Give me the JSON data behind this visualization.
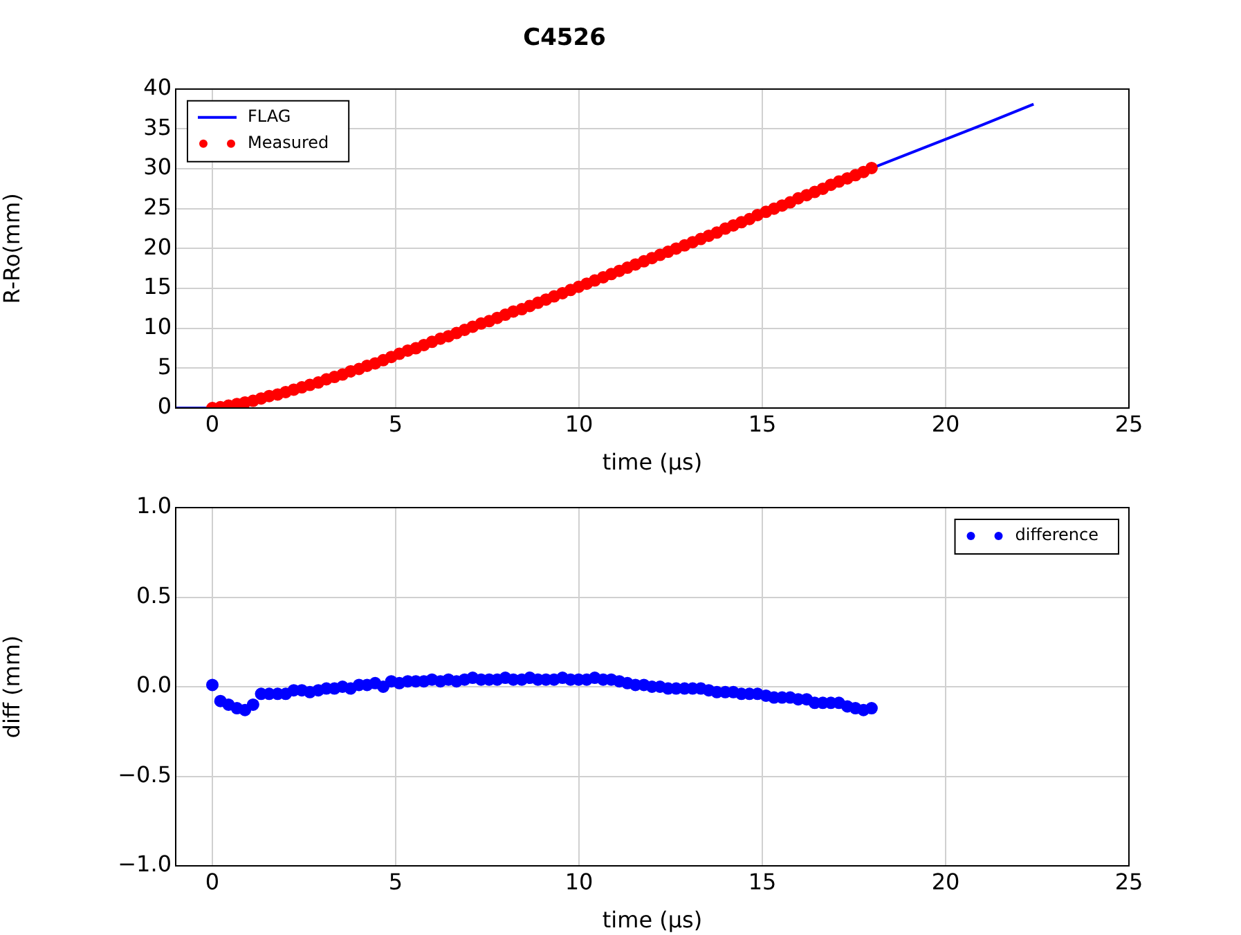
{
  "chart_data": [
    {
      "type": "line",
      "title": "C4526",
      "xlabel": "time (μs)",
      "ylabel": "R-Ro(mm)",
      "xlim": [
        -1,
        25
      ],
      "xticks": [
        0,
        5,
        10,
        15,
        20,
        25
      ],
      "ylim": [
        0,
        40
      ],
      "yticks": [
        0,
        5,
        10,
        15,
        20,
        25,
        30,
        35,
        40
      ],
      "grid": true,
      "legend": "top left",
      "series": [
        {
          "name": "FLAG",
          "type": "line",
          "color": "#0000ff",
          "marker": "none",
          "line_style": "solid",
          "x": [
            -1,
            0,
            0.5,
            1,
            1.5,
            2,
            3,
            4,
            5,
            6,
            7,
            8,
            9,
            10,
            11,
            12,
            13,
            14,
            15,
            16,
            17,
            18,
            19,
            20,
            21,
            22.4
          ],
          "values": [
            0,
            0,
            null,
            null,
            null,
            null,
            null,
            null,
            null,
            null,
            null,
            null,
            null,
            null,
            null,
            null,
            null,
            null,
            null,
            null,
            null,
            30.1,
            31.9,
            33.7,
            35.5,
            38.1
          ]
        },
        {
          "name": "Measured",
          "type": "scatter",
          "color": "#ff0000",
          "marker": "circle",
          "x": [
            0,
            0.22,
            0.44,
            0.67,
            0.89,
            1.11,
            1.33,
            1.55,
            1.78,
            2.0,
            2.22,
            2.44,
            2.66,
            2.89,
            3.11,
            3.33,
            3.55,
            3.77,
            4.0,
            4.22,
            4.44,
            4.66,
            4.88,
            5.1,
            5.33,
            5.55,
            5.77,
            5.99,
            6.22,
            6.44,
            6.66,
            6.88,
            7.1,
            7.33,
            7.55,
            7.77,
            7.99,
            8.21,
            8.44,
            8.66,
            8.88,
            9.1,
            9.32,
            9.55,
            9.77,
            9.99,
            10.21,
            10.43,
            10.66,
            10.88,
            11.1,
            11.32,
            11.54,
            11.77,
            11.99,
            12.21,
            12.43,
            12.65,
            12.88,
            13.1,
            13.32,
            13.54,
            13.76,
            13.99,
            14.21,
            14.43,
            14.65,
            14.87,
            15.1,
            15.32,
            15.54,
            15.76,
            15.98,
            16.21,
            16.43,
            16.65,
            16.87,
            17.09,
            17.32,
            17.54,
            17.76,
            17.98
          ],
          "values": [
            0,
            0.1,
            0.3,
            0.5,
            0.7,
            0.9,
            1.2,
            1.5,
            1.7,
            2.0,
            2.3,
            2.6,
            2.9,
            3.2,
            3.6,
            3.9,
            4.2,
            4.6,
            4.9,
            5.3,
            5.6,
            6.0,
            6.4,
            6.8,
            7.2,
            7.5,
            7.9,
            8.3,
            8.7,
            9.0,
            9.4,
            9.8,
            10.2,
            10.6,
            10.9,
            11.3,
            11.7,
            12.1,
            12.4,
            12.8,
            13.2,
            13.6,
            14.0,
            14.4,
            14.8,
            15.2,
            15.6,
            16.0,
            16.4,
            16.8,
            17.2,
            17.6,
            18.0,
            18.4,
            18.8,
            19.2,
            19.6,
            20.0,
            20.4,
            20.8,
            21.2,
            21.6,
            22.0,
            22.5,
            22.9,
            23.3,
            23.7,
            24.2,
            24.6,
            25.0,
            25.4,
            25.8,
            26.3,
            26.7,
            27.1,
            27.5,
            28.0,
            28.4,
            28.8,
            29.2,
            29.6,
            30.1
          ]
        }
      ]
    },
    {
      "type": "scatter",
      "xlabel": "time (μs)",
      "ylabel": "diff (mm)",
      "xlim": [
        -1,
        25
      ],
      "xticks": [
        0,
        5,
        10,
        15,
        20,
        25
      ],
      "ylim": [
        -1,
        1
      ],
      "yticks": [
        {
          "value": -1,
          "label": "−1.0"
        },
        {
          "value": -0.5,
          "label": "−0.5"
        },
        {
          "value": 0,
          "label": "0.0"
        },
        {
          "value": 0.5,
          "label": "0.5"
        },
        {
          "value": 1,
          "label": "1.0"
        }
      ],
      "grid": true,
      "legend": "top right",
      "marker": "circle",
      "series": [
        {
          "name": "difference",
          "color": "#0000ff",
          "x": [
            0,
            0.22,
            0.44,
            0.67,
            0.89,
            1.11,
            1.33,
            1.55,
            1.78,
            2.0,
            2.22,
            2.44,
            2.66,
            2.89,
            3.11,
            3.33,
            3.55,
            3.77,
            4.0,
            4.22,
            4.44,
            4.66,
            4.88,
            5.1,
            5.33,
            5.55,
            5.77,
            5.99,
            6.22,
            6.44,
            6.66,
            6.88,
            7.1,
            7.33,
            7.55,
            7.77,
            7.99,
            8.21,
            8.44,
            8.66,
            8.88,
            9.1,
            9.32,
            9.55,
            9.77,
            9.99,
            10.21,
            10.43,
            10.66,
            10.88,
            11.1,
            11.32,
            11.54,
            11.77,
            11.99,
            12.21,
            12.43,
            12.65,
            12.88,
            13.1,
            13.32,
            13.54,
            13.76,
            13.99,
            14.21,
            14.43,
            14.65,
            14.87,
            15.1,
            15.32,
            15.54,
            15.76,
            15.98,
            16.21,
            16.43,
            16.65,
            16.87,
            17.09,
            17.32,
            17.54,
            17.76,
            17.98
          ],
          "values": [
            0.01,
            -0.08,
            -0.1,
            -0.12,
            -0.13,
            -0.1,
            -0.04,
            -0.04,
            -0.04,
            -0.04,
            -0.02,
            -0.02,
            -0.03,
            -0.02,
            -0.01,
            -0.01,
            0.0,
            -0.01,
            0.01,
            0.01,
            0.02,
            0.0,
            0.03,
            0.02,
            0.03,
            0.03,
            0.03,
            0.04,
            0.03,
            0.04,
            0.03,
            0.04,
            0.05,
            0.04,
            0.04,
            0.04,
            0.05,
            0.04,
            0.04,
            0.05,
            0.04,
            0.04,
            0.04,
            0.05,
            0.04,
            0.04,
            0.04,
            0.05,
            0.04,
            0.04,
            0.03,
            0.02,
            0.01,
            0.01,
            0.0,
            0.0,
            -0.01,
            -0.01,
            -0.01,
            -0.01,
            -0.01,
            -0.02,
            -0.03,
            -0.03,
            -0.03,
            -0.04,
            -0.04,
            -0.04,
            -0.05,
            -0.06,
            -0.06,
            -0.06,
            -0.07,
            -0.07,
            -0.09,
            -0.09,
            -0.09,
            -0.09,
            -0.11,
            -0.12,
            -0.13,
            -0.12
          ]
        }
      ]
    }
  ]
}
